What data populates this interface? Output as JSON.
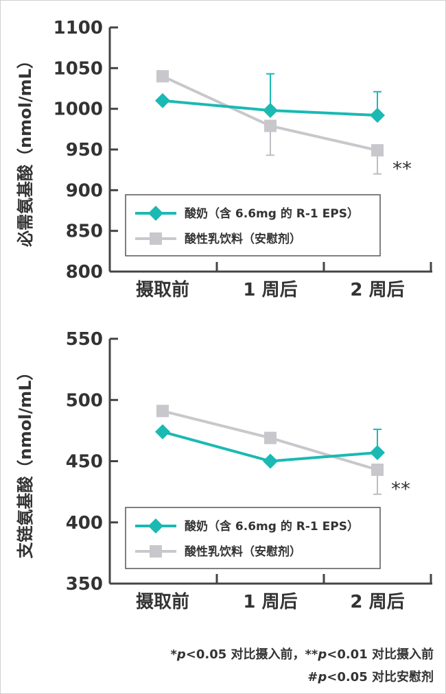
{
  "colors": {
    "series1": "#1ab9b3",
    "series2": "#c8c8cc",
    "axis": "#444444",
    "errbar_series1": "#1ab9b3",
    "errbar_series2": "#bdbdc2"
  },
  "chart_data": [
    {
      "type": "line",
      "categories": [
        "摄取前",
        "1 周后",
        "2 周后"
      ],
      "ylabel": "必需氨基酸（nmol/mL）",
      "ylim": [
        800,
        1100
      ],
      "yticks": [
        800,
        850,
        900,
        950,
        1000,
        1050,
        1100
      ],
      "legend_position": "lower-left",
      "series": [
        {
          "name": "酸奶（含 6.6mg 的 R-1 EPS）",
          "marker": "diamond",
          "values": [
            1010,
            998,
            992
          ],
          "err_up": [
            0,
            45,
            29
          ],
          "err_down": [
            0,
            0,
            0
          ]
        },
        {
          "name": "酸性乳饮料（安慰剂）",
          "marker": "square",
          "values": [
            1040,
            979,
            949
          ],
          "err_up": [
            0,
            0,
            0
          ],
          "err_down": [
            0,
            36,
            29
          ]
        }
      ],
      "annotations": [
        {
          "category": "2 周后",
          "text": "**"
        }
      ]
    },
    {
      "type": "line",
      "categories": [
        "摄取前",
        "1 周后",
        "2 周后"
      ],
      "ylabel": "支链氨基酸（nmol/mL）",
      "ylim": [
        350,
        550
      ],
      "yticks": [
        350,
        400,
        450,
        500,
        550
      ],
      "legend_position": "lower-left",
      "series": [
        {
          "name": "酸奶（含 6.6mg 的 R-1 EPS）",
          "marker": "diamond",
          "values": [
            474,
            450,
            457
          ],
          "err_up": [
            0,
            0,
            19
          ],
          "err_down": [
            0,
            0,
            0
          ]
        },
        {
          "name": "酸性乳饮料（安慰剂）",
          "marker": "square",
          "values": [
            491,
            469,
            443
          ],
          "err_up": [
            0,
            0,
            0
          ],
          "err_down": [
            0,
            0,
            20
          ]
        }
      ],
      "annotations": [
        {
          "category": "2 周后",
          "text": "**"
        }
      ]
    }
  ],
  "footnote": {
    "line1_star": "*",
    "line1_p": "p",
    "line1_mid": "<0.05 对比摄入前，**",
    "line1_p2": "p",
    "line1_end": "<0.01 对比摄入前",
    "line2_hash": "#",
    "line2_p": "p",
    "line2_end": "<0.05 对比安慰剂"
  }
}
